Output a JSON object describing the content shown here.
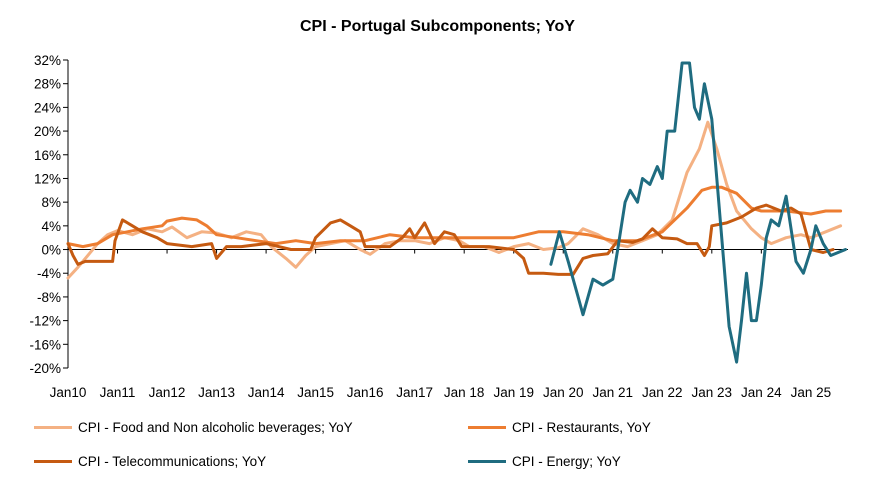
{
  "chart_data": {
    "type": "line",
    "title": "CPI - Portugal Subcomponents; YoY",
    "xlabel": "",
    "ylabel": "",
    "ylim": [
      -20,
      32
    ],
    "y_ticks": [
      32,
      28,
      24,
      20,
      16,
      12,
      8,
      4,
      0,
      -4,
      -8,
      -12,
      -16,
      -20
    ],
    "y_tick_labels": [
      "32%",
      "28%",
      "24%",
      "20%",
      "16%",
      "12%",
      "8%",
      "4%",
      "0%",
      "-4%",
      "-8%",
      "-12%",
      "-16%",
      "-20%"
    ],
    "x_range": [
      2010.0,
      2025.75
    ],
    "x_ticks": [
      2010,
      2011,
      2012,
      2013,
      2014,
      2015,
      2016,
      2017,
      2018,
      2019,
      2020,
      2021,
      2022,
      2023,
      2024,
      2025
    ],
    "x_tick_labels": [
      "Jan10",
      "Jan11",
      "Jan12",
      "Jan13",
      "Jan14",
      "Jan15",
      "Jan16",
      "Jan17",
      "Jan 18",
      "Jan 19",
      "Jan 20",
      "Jan 21",
      "Jan 22",
      "Jan 23",
      "Jan 24",
      "Jan 25"
    ],
    "grid": false,
    "legend_position": "bottom",
    "series": [
      {
        "name": "CPI - Food and Non alcoholic beverages; YoY",
        "color": "#F4B183",
        "points": [
          [
            2010.0,
            -4.8
          ],
          [
            2010.2,
            -3.0
          ],
          [
            2010.4,
            -1.0
          ],
          [
            2010.6,
            1.0
          ],
          [
            2010.8,
            2.5
          ],
          [
            2011.0,
            3.2
          ],
          [
            2011.3,
            2.5
          ],
          [
            2011.6,
            3.5
          ],
          [
            2011.9,
            3.0
          ],
          [
            2012.1,
            3.8
          ],
          [
            2012.4,
            2.0
          ],
          [
            2012.7,
            3.0
          ],
          [
            2013.0,
            2.8
          ],
          [
            2013.3,
            2.0
          ],
          [
            2013.6,
            3.0
          ],
          [
            2013.9,
            2.5
          ],
          [
            2014.1,
            0.5
          ],
          [
            2014.4,
            -1.5
          ],
          [
            2014.6,
            -3.0
          ],
          [
            2014.8,
            -1.0
          ],
          [
            2015.0,
            0.5
          ],
          [
            2015.3,
            1.0
          ],
          [
            2015.6,
            1.5
          ],
          [
            2015.9,
            0.0
          ],
          [
            2016.1,
            -0.8
          ],
          [
            2016.4,
            1.0
          ],
          [
            2016.7,
            1.5
          ],
          [
            2017.0,
            1.5
          ],
          [
            2017.3,
            1.0
          ],
          [
            2017.6,
            2.0
          ],
          [
            2017.9,
            1.5
          ],
          [
            2018.1,
            0.5
          ],
          [
            2018.4,
            0.5
          ],
          [
            2018.7,
            -0.5
          ],
          [
            2019.0,
            0.5
          ],
          [
            2019.3,
            1.0
          ],
          [
            2019.6,
            0.0
          ],
          [
            2019.9,
            0.3
          ],
          [
            2020.1,
            1.0
          ],
          [
            2020.4,
            3.5
          ],
          [
            2020.7,
            2.5
          ],
          [
            2021.0,
            1.0
          ],
          [
            2021.3,
            0.5
          ],
          [
            2021.6,
            1.5
          ],
          [
            2021.9,
            2.5
          ],
          [
            2022.2,
            5.0
          ],
          [
            2022.5,
            13.0
          ],
          [
            2022.75,
            17.0
          ],
          [
            2022.92,
            21.5
          ],
          [
            2023.1,
            17.0
          ],
          [
            2023.3,
            11.0
          ],
          [
            2023.5,
            6.5
          ],
          [
            2023.8,
            3.5
          ],
          [
            2024.0,
            2.0
          ],
          [
            2024.2,
            1.0
          ],
          [
            2024.5,
            2.0
          ],
          [
            2024.8,
            2.5
          ],
          [
            2025.0,
            2.0
          ],
          [
            2025.3,
            3.0
          ],
          [
            2025.6,
            4.0
          ]
        ]
      },
      {
        "name": "CPI - Restaurants, YoY",
        "color": "#ED7D31",
        "points": [
          [
            2010.0,
            1.0
          ],
          [
            2010.3,
            0.5
          ],
          [
            2010.6,
            1.0
          ],
          [
            2010.9,
            2.5
          ],
          [
            2011.2,
            3.0
          ],
          [
            2011.5,
            3.5
          ],
          [
            2011.9,
            4.0
          ],
          [
            2012.0,
            4.8
          ],
          [
            2012.3,
            5.3
          ],
          [
            2012.6,
            5.0
          ],
          [
            2012.8,
            4.0
          ],
          [
            2013.0,
            2.5
          ],
          [
            2013.4,
            2.0
          ],
          [
            2013.8,
            1.5
          ],
          [
            2014.2,
            1.0
          ],
          [
            2014.6,
            1.5
          ],
          [
            2015.0,
            1.0
          ],
          [
            2015.5,
            1.5
          ],
          [
            2016.0,
            1.5
          ],
          [
            2016.5,
            2.5
          ],
          [
            2017.0,
            2.0
          ],
          [
            2017.5,
            2.0
          ],
          [
            2018.0,
            2.0
          ],
          [
            2018.5,
            2.0
          ],
          [
            2019.0,
            2.0
          ],
          [
            2019.5,
            3.0
          ],
          [
            2020.0,
            3.0
          ],
          [
            2020.5,
            2.5
          ],
          [
            2021.0,
            1.5
          ],
          [
            2021.5,
            1.5
          ],
          [
            2022.0,
            3.0
          ],
          [
            2022.5,
            7.0
          ],
          [
            2022.8,
            10.0
          ],
          [
            2023.0,
            10.5
          ],
          [
            2023.2,
            10.5
          ],
          [
            2023.5,
            9.5
          ],
          [
            2023.8,
            7.0
          ],
          [
            2024.0,
            6.5
          ],
          [
            2024.5,
            6.5
          ],
          [
            2025.0,
            6.0
          ],
          [
            2025.3,
            6.5
          ],
          [
            2025.6,
            6.5
          ]
        ]
      },
      {
        "name": "CPI - Telecommunications; YoY",
        "color": "#C55A11",
        "points": [
          [
            2010.0,
            1.0
          ],
          [
            2010.1,
            -1.0
          ],
          [
            2010.2,
            -2.5
          ],
          [
            2010.35,
            -2.0
          ],
          [
            2010.6,
            -2.0
          ],
          [
            2010.9,
            -2.0
          ],
          [
            2010.95,
            1.5
          ],
          [
            2011.1,
            5.0
          ],
          [
            2011.3,
            4.0
          ],
          [
            2011.5,
            3.0
          ],
          [
            2011.8,
            2.0
          ],
          [
            2012.0,
            1.0
          ],
          [
            2012.5,
            0.5
          ],
          [
            2012.9,
            1.0
          ],
          [
            2013.0,
            -1.5
          ],
          [
            2013.2,
            0.5
          ],
          [
            2013.5,
            0.5
          ],
          [
            2014.0,
            1.0
          ],
          [
            2014.5,
            0.0
          ],
          [
            2014.9,
            0.0
          ],
          [
            2015.0,
            2.0
          ],
          [
            2015.3,
            4.5
          ],
          [
            2015.5,
            5.0
          ],
          [
            2015.7,
            4.0
          ],
          [
            2015.9,
            3.0
          ],
          [
            2016.0,
            0.5
          ],
          [
            2016.5,
            0.5
          ],
          [
            2016.75,
            2.0
          ],
          [
            2016.9,
            3.5
          ],
          [
            2017.0,
            2.0
          ],
          [
            2017.2,
            4.5
          ],
          [
            2017.4,
            1.0
          ],
          [
            2017.6,
            3.0
          ],
          [
            2017.8,
            2.5
          ],
          [
            2017.95,
            0.5
          ],
          [
            2018.2,
            0.5
          ],
          [
            2018.5,
            0.5
          ],
          [
            2018.8,
            0.2
          ],
          [
            2019.0,
            0.0
          ],
          [
            2019.2,
            -1.5
          ],
          [
            2019.3,
            -4.0
          ],
          [
            2019.6,
            -4.0
          ],
          [
            2019.9,
            -4.2
          ],
          [
            2020.2,
            -4.2
          ],
          [
            2020.4,
            -1.5
          ],
          [
            2020.6,
            -1.0
          ],
          [
            2020.9,
            -0.7
          ],
          [
            2021.1,
            1.5
          ],
          [
            2021.4,
            1.2
          ],
          [
            2021.6,
            1.8
          ],
          [
            2021.8,
            3.5
          ],
          [
            2022.0,
            2.0
          ],
          [
            2022.3,
            1.8
          ],
          [
            2022.5,
            1.0
          ],
          [
            2022.7,
            1.0
          ],
          [
            2022.85,
            -1.0
          ],
          [
            2022.95,
            0.5
          ],
          [
            2023.0,
            4.0
          ],
          [
            2023.3,
            4.5
          ],
          [
            2023.6,
            5.5
          ],
          [
            2023.9,
            7.0
          ],
          [
            2024.1,
            7.5
          ],
          [
            2024.4,
            6.5
          ],
          [
            2024.6,
            7.0
          ],
          [
            2024.8,
            6.0
          ],
          [
            2025.0,
            0.0
          ],
          [
            2025.25,
            -0.5
          ],
          [
            2025.45,
            0.0
          ]
        ]
      },
      {
        "name": "CPI - Energy; YoY",
        "color": "#1F6C80",
        "points": [
          [
            2019.75,
            -2.5
          ],
          [
            2019.92,
            3.0
          ],
          [
            2020.1,
            -2.0
          ],
          [
            2020.3,
            -8.0
          ],
          [
            2020.4,
            -11.0
          ],
          [
            2020.6,
            -5.0
          ],
          [
            2020.8,
            -6.0
          ],
          [
            2021.0,
            -5.0
          ],
          [
            2021.1,
            0.0
          ],
          [
            2021.25,
            8.0
          ],
          [
            2021.35,
            10.0
          ],
          [
            2021.5,
            8.0
          ],
          [
            2021.6,
            12.0
          ],
          [
            2021.75,
            11.0
          ],
          [
            2021.9,
            14.0
          ],
          [
            2022.0,
            12.0
          ],
          [
            2022.1,
            20.0
          ],
          [
            2022.25,
            20.0
          ],
          [
            2022.4,
            31.5
          ],
          [
            2022.55,
            31.5
          ],
          [
            2022.65,
            24.0
          ],
          [
            2022.75,
            22.0
          ],
          [
            2022.85,
            28.0
          ],
          [
            2023.0,
            22.0
          ],
          [
            2023.1,
            12.0
          ],
          [
            2023.25,
            -3.0
          ],
          [
            2023.35,
            -13.0
          ],
          [
            2023.5,
            -19.0
          ],
          [
            2023.6,
            -12.0
          ],
          [
            2023.7,
            -4.0
          ],
          [
            2023.8,
            -12.0
          ],
          [
            2023.9,
            -12.0
          ],
          [
            2024.0,
            -6.0
          ],
          [
            2024.1,
            2.0
          ],
          [
            2024.2,
            5.0
          ],
          [
            2024.35,
            4.0
          ],
          [
            2024.5,
            9.0
          ],
          [
            2024.7,
            -2.0
          ],
          [
            2024.85,
            -4.0
          ],
          [
            2025.0,
            0.0
          ],
          [
            2025.1,
            4.0
          ],
          [
            2025.25,
            1.0
          ],
          [
            2025.4,
            -1.0
          ],
          [
            2025.55,
            -0.5
          ],
          [
            2025.7,
            0.0
          ]
        ]
      }
    ]
  },
  "legend": {
    "items": [
      {
        "label": "CPI - Food and Non alcoholic beverages; YoY",
        "color": "#F4B183"
      },
      {
        "label": "CPI - Restaurants, YoY",
        "color": "#ED7D31"
      },
      {
        "label": "CPI - Telecommunications; YoY",
        "color": "#C55A11"
      },
      {
        "label": "CPI - Energy; YoY",
        "color": "#1F6C80"
      }
    ]
  }
}
